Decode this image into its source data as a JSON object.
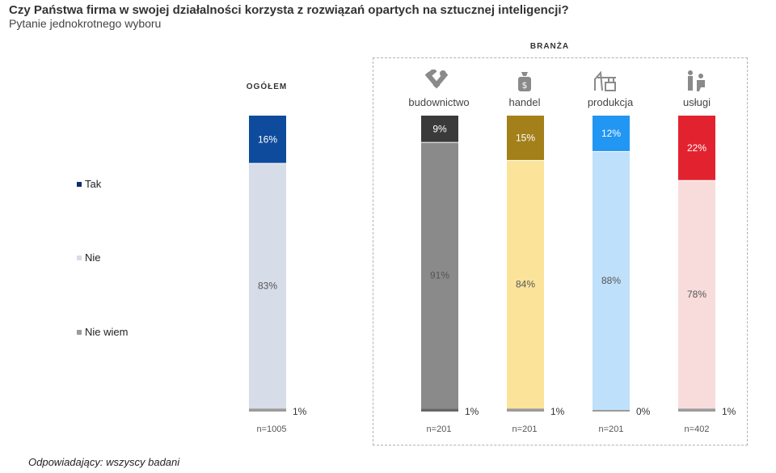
{
  "title": "Czy Państwa firma w swojej działalności korzysta z rozwiązań opartych na sztucznej inteligencji?",
  "subtitle": "Pytanie jednokrotnego wyboru",
  "footer": "Odpowiadający: wszyscy badani",
  "ogolem_label": "OGÓŁEM",
  "branza_label": "BRANŻA",
  "legend": [
    {
      "label": "Tak",
      "color": "#0b2e75"
    },
    {
      "label": "Nie",
      "color": "#d6dce8"
    },
    {
      "label": "Nie wiem",
      "color": "#9b9b9b"
    }
  ],
  "chart_data": {
    "type": "bar",
    "stacked": true,
    "title": "Czy Państwa firma w swojej działalności korzysta z rozwiązań opartych na sztucznej inteligencji?",
    "categories": [
      "OGÓŁEM",
      "budownictwo",
      "handel",
      "produkcja",
      "usługi"
    ],
    "sample_sizes": [
      "n=1005",
      "n=201",
      "n=201",
      "n=201",
      "n=402"
    ],
    "series": [
      {
        "name": "Tak",
        "values": [
          16,
          9,
          15,
          12,
          22
        ],
        "labels": [
          "16%",
          "9%",
          "15%",
          "12%",
          "22%"
        ]
      },
      {
        "name": "Nie",
        "values": [
          83,
          91,
          84,
          88,
          78
        ],
        "labels": [
          "83%",
          "91%",
          "84%",
          "88%",
          "78%"
        ]
      },
      {
        "name": "Nie wiem",
        "values": [
          1,
          1,
          1,
          0,
          1
        ],
        "labels": [
          "1%",
          "1%",
          "1%",
          "0%",
          "1%"
        ]
      }
    ],
    "colors": {
      "tak": [
        "#0e4b9c",
        "#3a3a3a",
        "#a3801a",
        "#2196f3",
        "#e2232f"
      ],
      "nie": [
        "#d6dce8",
        "#8a8a8a",
        "#fbe49a",
        "#bfe0fb",
        "#f8dcdc"
      ],
      "nie_wiem": [
        "#9b9b9b",
        "#666666",
        "#9b9b9b",
        "#9b9b9b",
        "#9b9b9b"
      ]
    },
    "tak_label_color": [
      "#ffffff",
      "#ffffff",
      "#ffffff",
      "#ffffff",
      "#ffffff"
    ],
    "nie_label_color": [
      "#555555",
      "#555555",
      "#555555",
      "#555555",
      "#555555"
    ],
    "ylim": [
      0,
      100
    ]
  },
  "categories_display": [
    {
      "label": "budownictwo",
      "icon": "tools-icon"
    },
    {
      "label": "handel",
      "icon": "money-bag-icon"
    },
    {
      "label": "produkcja",
      "icon": "factory-icon"
    },
    {
      "label": "usługi",
      "icon": "service-person-icon"
    }
  ]
}
